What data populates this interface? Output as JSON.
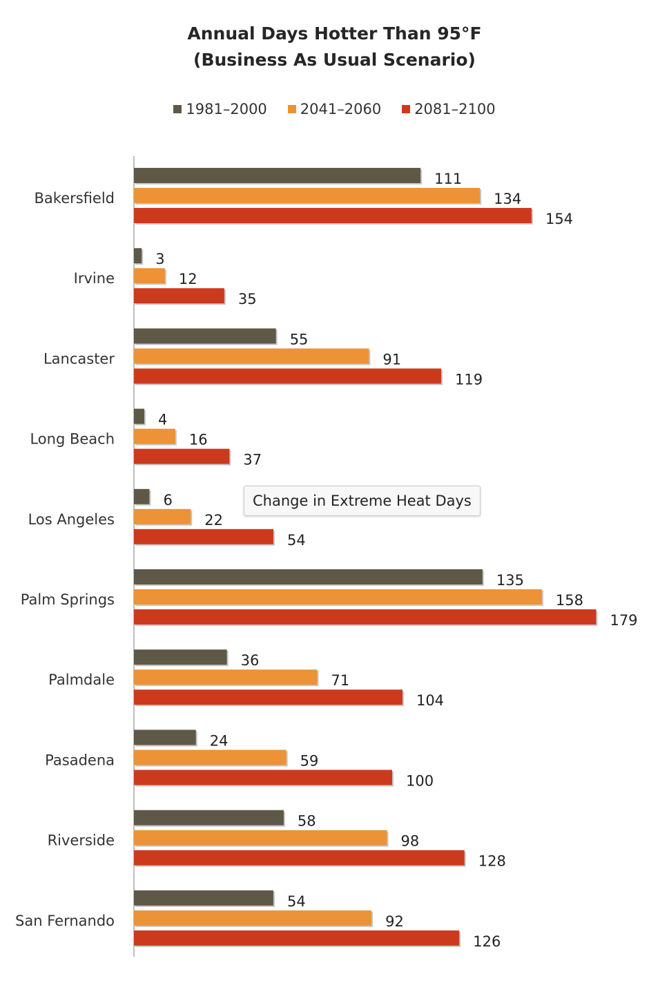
{
  "chart_data": {
    "type": "bar",
    "orientation": "horizontal",
    "title": [
      "Annual Days Hotter Than 95°F",
      "(Business As Usual Scenario)"
    ],
    "categories": [
      "Bakersfield",
      "Irvine",
      "Lancaster",
      "Long Beach",
      "Los Angeles",
      "Palm Springs",
      "Palmdale",
      "Pasadena",
      "Riverside",
      "San Fernando"
    ],
    "series": [
      {
        "name": "1981–2000",
        "color": "#5e5847",
        "values": [
          111,
          3,
          55,
          4,
          6,
          135,
          36,
          24,
          58,
          54
        ]
      },
      {
        "name": "2041–2060",
        "color": "#eb9336",
        "values": [
          134,
          12,
          91,
          16,
          22,
          158,
          71,
          59,
          98,
          92
        ]
      },
      {
        "name": "2081–2100",
        "color": "#cc3a1e",
        "values": [
          154,
          35,
          119,
          37,
          54,
          179,
          104,
          100,
          128,
          126
        ]
      }
    ],
    "legend_position": "top",
    "grid": false,
    "data_labels": true,
    "xlim": [
      0,
      180
    ]
  },
  "tooltip": {
    "text": "Change in Extreme Heat Days"
  }
}
